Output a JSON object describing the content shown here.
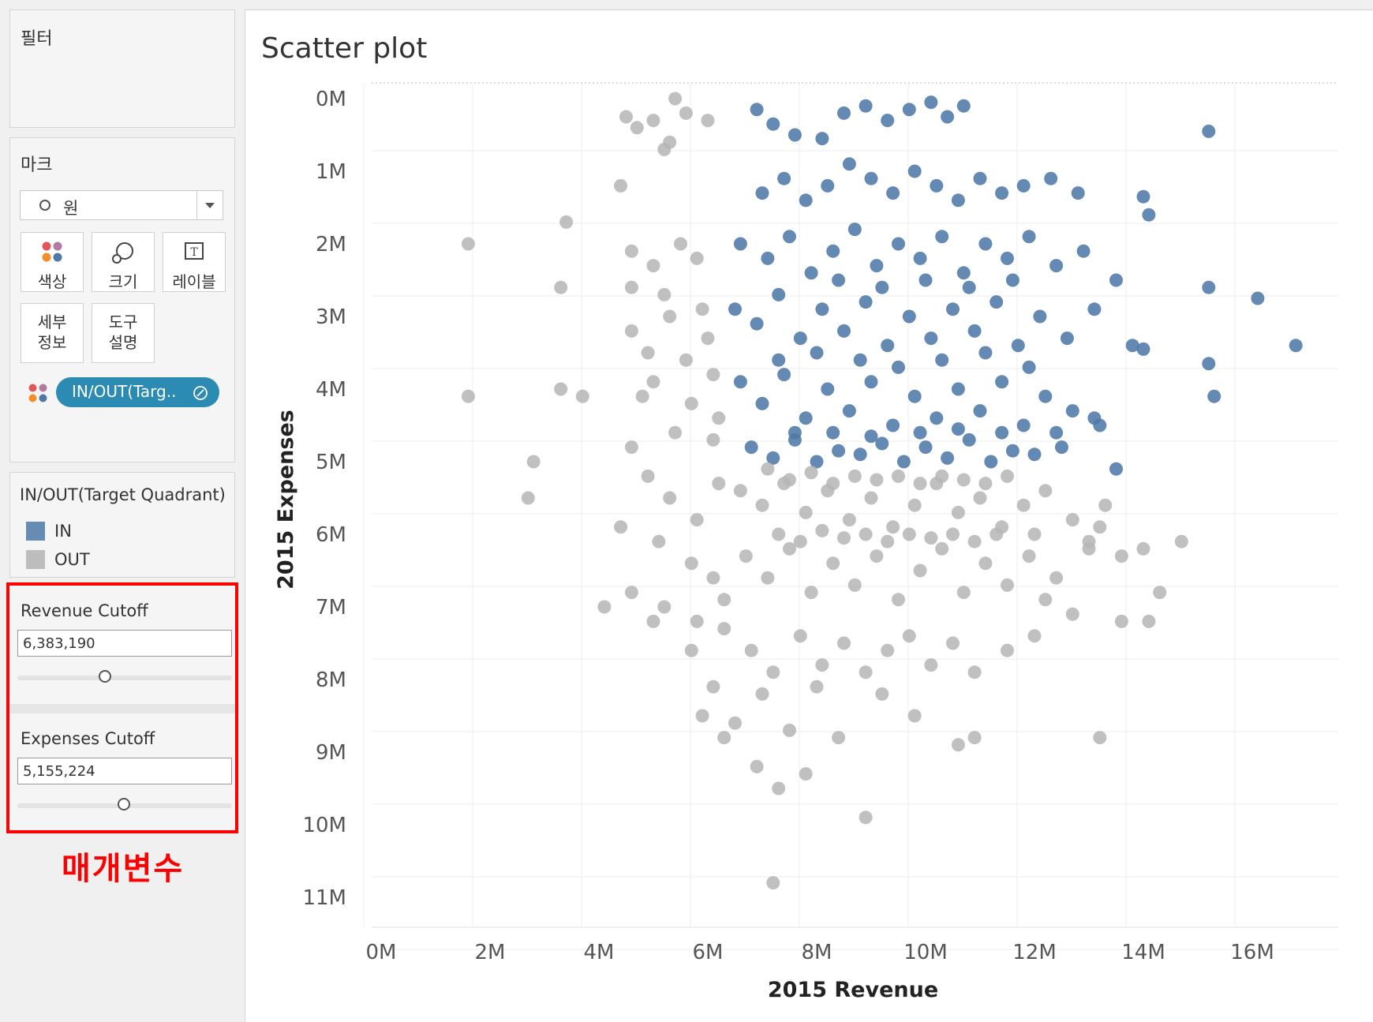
{
  "filters": {
    "title": "필터"
  },
  "marks": {
    "title": "마크",
    "type_label": "원",
    "buttons": [
      {
        "label": "색상"
      },
      {
        "label": "크기"
      },
      {
        "label": "레이블"
      },
      {
        "label": "세부\n정보"
      },
      {
        "label": "도구\n설명"
      }
    ],
    "color_pill": "IN/OUT(Targ.."
  },
  "legend": {
    "title": "IN/OUT(Target Quadrant)",
    "items": [
      {
        "label": "IN",
        "color": "#4e79a7"
      },
      {
        "label": "OUT",
        "color": "#bab0ac"
      }
    ]
  },
  "parameters": {
    "revenue": {
      "title": "Revenue Cutoff",
      "value": "6,383,190",
      "slider_fraction": 0.37
    },
    "expenses": {
      "title": "Expenses Cutoff",
      "value": "5,155,224",
      "slider_fraction": 0.45
    }
  },
  "annotation": "매개변수",
  "view": {
    "title": "Scatter plot"
  },
  "chart_data": {
    "type": "scatter",
    "title": "Scatter plot",
    "xlabel": "2015 Revenue",
    "ylabel": "2015 Expenses",
    "xlim": [
      0,
      17800000
    ],
    "ylim": [
      0,
      11500000
    ],
    "y_reversed": true,
    "x_ticks": [
      "0M",
      "2M",
      "4M",
      "6M",
      "8M",
      "10M",
      "12M",
      "14M",
      "16M"
    ],
    "y_ticks": [
      "0M",
      "1M",
      "2M",
      "3M",
      "4M",
      "5M",
      "6M",
      "7M",
      "8M",
      "9M",
      "10M",
      "11M"
    ],
    "grid": true,
    "revenue_cutoff": 6383190,
    "expenses_cutoff": 5155224,
    "colors": {
      "IN": "#4e79a7",
      "OUT": "#bab0ac"
    },
    "series": [
      {
        "name": "IN",
        "points": [
          [
            6.9,
            0.15
          ],
          [
            7.2,
            0.35
          ],
          [
            7.6,
            0.5
          ],
          [
            8.1,
            0.55
          ],
          [
            8.5,
            0.2
          ],
          [
            8.9,
            0.1
          ],
          [
            9.3,
            0.3
          ],
          [
            9.7,
            0.15
          ],
          [
            10.1,
            0.05
          ],
          [
            10.4,
            0.25
          ],
          [
            10.7,
            0.1
          ],
          [
            7.0,
            1.3
          ],
          [
            7.4,
            1.1
          ],
          [
            7.8,
            1.4
          ],
          [
            8.2,
            1.2
          ],
          [
            8.6,
            0.9
          ],
          [
            9.0,
            1.1
          ],
          [
            9.4,
            1.3
          ],
          [
            9.8,
            1.0
          ],
          [
            10.2,
            1.2
          ],
          [
            10.6,
            1.4
          ],
          [
            11.0,
            1.1
          ],
          [
            11.4,
            1.3
          ],
          [
            11.8,
            1.2
          ],
          [
            12.3,
            1.1
          ],
          [
            12.8,
            1.3
          ],
          [
            6.6,
            2.0
          ],
          [
            7.1,
            2.2
          ],
          [
            7.5,
            1.9
          ],
          [
            7.9,
            2.4
          ],
          [
            8.3,
            2.1
          ],
          [
            8.7,
            1.8
          ],
          [
            9.1,
            2.3
          ],
          [
            9.5,
            2.0
          ],
          [
            9.9,
            2.2
          ],
          [
            10.3,
            1.9
          ],
          [
            10.7,
            2.4
          ],
          [
            11.1,
            2.0
          ],
          [
            11.5,
            2.2
          ],
          [
            11.9,
            1.9
          ],
          [
            12.4,
            2.3
          ],
          [
            12.9,
            2.1
          ],
          [
            13.5,
            2.5
          ],
          [
            6.5,
            2.9
          ],
          [
            6.9,
            3.1
          ],
          [
            7.3,
            2.7
          ],
          [
            7.7,
            3.3
          ],
          [
            8.1,
            2.9
          ],
          [
            8.5,
            3.2
          ],
          [
            8.9,
            2.8
          ],
          [
            9.3,
            3.4
          ],
          [
            9.7,
            3.0
          ],
          [
            10.1,
            3.3
          ],
          [
            10.5,
            2.9
          ],
          [
            10.9,
            3.2
          ],
          [
            11.3,
            2.8
          ],
          [
            11.7,
            3.4
          ],
          [
            12.1,
            3.0
          ],
          [
            12.6,
            3.3
          ],
          [
            13.1,
            2.9
          ],
          [
            13.8,
            3.4
          ],
          [
            6.6,
            3.9
          ],
          [
            7.0,
            4.2
          ],
          [
            7.4,
            3.8
          ],
          [
            7.8,
            4.4
          ],
          [
            8.2,
            4.0
          ],
          [
            8.6,
            4.3
          ],
          [
            9.0,
            3.9
          ],
          [
            9.4,
            4.5
          ],
          [
            9.8,
            4.1
          ],
          [
            10.2,
            4.4
          ],
          [
            10.6,
            4.0
          ],
          [
            11.0,
            4.3
          ],
          [
            11.4,
            3.9
          ],
          [
            11.8,
            4.5
          ],
          [
            12.2,
            4.1
          ],
          [
            12.7,
            4.3
          ],
          [
            13.2,
            4.5
          ],
          [
            6.8,
            4.8
          ],
          [
            7.2,
            4.95
          ],
          [
            7.6,
            4.7
          ],
          [
            8.0,
            5.0
          ],
          [
            8.4,
            4.85
          ],
          [
            8.8,
            4.9
          ],
          [
            9.2,
            4.75
          ],
          [
            9.6,
            5.0
          ],
          [
            10.0,
            4.8
          ],
          [
            10.4,
            4.95
          ],
          [
            10.8,
            4.7
          ],
          [
            11.2,
            5.0
          ],
          [
            11.6,
            4.85
          ],
          [
            12.0,
            4.9
          ],
          [
            12.5,
            4.8
          ],
          [
            7.3,
            3.6
          ],
          [
            8.0,
            3.5
          ],
          [
            8.8,
            3.6
          ],
          [
            9.5,
            3.7
          ],
          [
            10.3,
            3.6
          ],
          [
            11.1,
            3.5
          ],
          [
            11.9,
            3.7
          ],
          [
            8.4,
            2.5
          ],
          [
            9.2,
            2.6
          ],
          [
            10.0,
            2.5
          ],
          [
            10.8,
            2.6
          ],
          [
            11.6,
            2.5
          ],
          [
            7.6,
            4.6
          ],
          [
            8.3,
            4.6
          ],
          [
            9.0,
            4.65
          ],
          [
            9.9,
            4.6
          ],
          [
            10.6,
            4.55
          ],
          [
            11.4,
            4.6
          ],
          [
            12.4,
            4.6
          ],
          [
            15.2,
            0.45
          ],
          [
            14.0,
            1.35
          ],
          [
            14.1,
            1.6
          ],
          [
            15.2,
            2.6
          ],
          [
            16.1,
            2.75
          ],
          [
            16.8,
            3.4
          ],
          [
            15.2,
            3.65
          ],
          [
            15.3,
            4.1
          ],
          [
            13.5,
            5.1
          ],
          [
            14.0,
            3.45
          ],
          [
            13.1,
            4.4
          ]
        ]
      },
      {
        "name": "OUT",
        "points": [
          [
            5.4,
            0.0
          ],
          [
            4.5,
            0.25
          ],
          [
            5.0,
            0.3
          ],
          [
            4.7,
            0.4
          ],
          [
            5.3,
            0.6
          ],
          [
            5.6,
            0.2
          ],
          [
            6.0,
            0.3
          ],
          [
            5.2,
            0.7
          ],
          [
            4.4,
            1.2
          ],
          [
            3.4,
            1.7
          ],
          [
            1.6,
            2.0
          ],
          [
            3.3,
            2.6
          ],
          [
            1.6,
            4.1
          ],
          [
            3.3,
            4.0
          ],
          [
            3.7,
            4.1
          ],
          [
            2.8,
            5.0
          ],
          [
            2.7,
            5.5
          ],
          [
            4.6,
            2.1
          ],
          [
            5.0,
            2.3
          ],
          [
            5.5,
            2.0
          ],
          [
            5.8,
            2.2
          ],
          [
            4.6,
            2.6
          ],
          [
            5.2,
            2.7
          ],
          [
            5.9,
            2.9
          ],
          [
            4.6,
            3.2
          ],
          [
            5.3,
            3.0
          ],
          [
            6.0,
            3.3
          ],
          [
            4.9,
            3.5
          ],
          [
            5.6,
            3.6
          ],
          [
            6.1,
            3.8
          ],
          [
            5.0,
            3.9
          ],
          [
            5.7,
            4.2
          ],
          [
            6.2,
            4.4
          ],
          [
            4.8,
            4.1
          ],
          [
            4.6,
            4.8
          ],
          [
            5.4,
            4.6
          ],
          [
            6.1,
            4.7
          ],
          [
            4.9,
            5.2
          ],
          [
            5.3,
            5.5
          ],
          [
            5.8,
            5.8
          ],
          [
            6.2,
            5.3
          ],
          [
            4.4,
            5.9
          ],
          [
            5.1,
            6.1
          ],
          [
            5.7,
            6.4
          ],
          [
            6.1,
            6.6
          ],
          [
            4.6,
            6.8
          ],
          [
            5.2,
            7.0
          ],
          [
            5.8,
            7.2
          ],
          [
            6.3,
            6.9
          ],
          [
            4.1,
            7.0
          ],
          [
            5.0,
            7.2
          ],
          [
            6.6,
            5.4
          ],
          [
            7.0,
            5.6
          ],
          [
            7.4,
            5.3
          ],
          [
            7.8,
            5.7
          ],
          [
            8.2,
            5.4
          ],
          [
            8.6,
            5.8
          ],
          [
            9.0,
            5.5
          ],
          [
            9.4,
            5.9
          ],
          [
            9.8,
            5.6
          ],
          [
            10.2,
            5.3
          ],
          [
            10.6,
            5.7
          ],
          [
            11.0,
            5.5
          ],
          [
            11.4,
            5.9
          ],
          [
            11.8,
            5.6
          ],
          [
            12.2,
            5.4
          ],
          [
            12.7,
            5.8
          ],
          [
            13.3,
            5.6
          ],
          [
            6.7,
            6.3
          ],
          [
            7.1,
            6.6
          ],
          [
            7.5,
            6.2
          ],
          [
            7.9,
            6.8
          ],
          [
            8.3,
            6.4
          ],
          [
            8.7,
            6.7
          ],
          [
            9.1,
            6.3
          ],
          [
            9.5,
            6.9
          ],
          [
            9.9,
            6.5
          ],
          [
            10.3,
            6.2
          ],
          [
            10.7,
            6.8
          ],
          [
            11.1,
            6.4
          ],
          [
            11.5,
            6.7
          ],
          [
            11.9,
            6.3
          ],
          [
            12.4,
            6.6
          ],
          [
            13.0,
            6.2
          ],
          [
            13.6,
            6.3
          ],
          [
            14.0,
            6.2
          ],
          [
            14.7,
            6.1
          ],
          [
            6.3,
            7.3
          ],
          [
            6.8,
            7.6
          ],
          [
            7.2,
            7.9
          ],
          [
            7.7,
            7.4
          ],
          [
            8.1,
            7.8
          ],
          [
            8.5,
            7.5
          ],
          [
            8.9,
            7.9
          ],
          [
            9.3,
            7.6
          ],
          [
            9.7,
            7.4
          ],
          [
            10.1,
            7.8
          ],
          [
            10.5,
            7.5
          ],
          [
            10.9,
            7.9
          ],
          [
            11.5,
            7.6
          ],
          [
            12.0,
            7.4
          ],
          [
            12.7,
            7.1
          ],
          [
            13.6,
            7.2
          ],
          [
            14.1,
            7.2
          ],
          [
            14.3,
            6.8
          ],
          [
            5.7,
            7.6
          ],
          [
            6.1,
            8.1
          ],
          [
            6.5,
            8.6
          ],
          [
            7.0,
            8.2
          ],
          [
            7.5,
            8.7
          ],
          [
            8.0,
            8.1
          ],
          [
            8.4,
            8.8
          ],
          [
            9.2,
            8.2
          ],
          [
            9.8,
            8.5
          ],
          [
            10.6,
            8.9
          ],
          [
            10.9,
            8.8
          ],
          [
            13.2,
            8.8
          ],
          [
            5.9,
            8.5
          ],
          [
            6.3,
            8.8
          ],
          [
            6.9,
            9.2
          ],
          [
            7.3,
            9.5
          ],
          [
            7.8,
            9.3
          ],
          [
            8.9,
            9.9
          ],
          [
            7.2,
            10.8
          ],
          [
            7.1,
            5.1
          ],
          [
            7.5,
            5.25
          ],
          [
            7.9,
            5.15
          ],
          [
            8.3,
            5.3
          ],
          [
            8.7,
            5.2
          ],
          [
            9.1,
            5.25
          ],
          [
            9.5,
            5.2
          ],
          [
            9.9,
            5.3
          ],
          [
            10.3,
            5.2
          ],
          [
            10.7,
            5.25
          ],
          [
            11.1,
            5.3
          ],
          [
            11.5,
            5.2
          ],
          [
            7.3,
            6.0
          ],
          [
            7.7,
            6.1
          ],
          [
            8.1,
            5.95
          ],
          [
            8.5,
            6.05
          ],
          [
            8.9,
            6.0
          ],
          [
            9.3,
            6.1
          ],
          [
            9.7,
            6.0
          ],
          [
            10.1,
            6.05
          ],
          [
            10.5,
            6.0
          ],
          [
            10.9,
            6.1
          ],
          [
            11.3,
            6.0
          ],
          [
            12.0,
            6.0
          ],
          [
            13.0,
            6.1
          ],
          [
            12.2,
            6.9
          ],
          [
            13.2,
            5.9
          ]
        ]
      }
    ]
  }
}
